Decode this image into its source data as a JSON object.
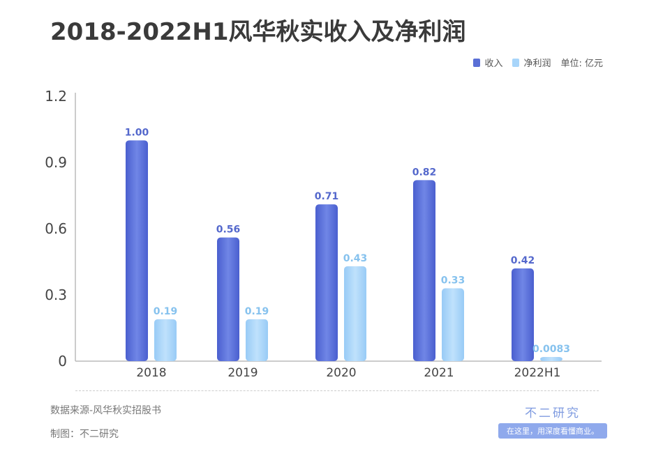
{
  "chart_data": {
    "type": "bar",
    "title": "2018-2022H1风华秋实收入及净利润",
    "categories": [
      "2018",
      "2019",
      "2020",
      "2021",
      "2022H1"
    ],
    "series": [
      {
        "name": "收入",
        "values": [
          1.0,
          0.56,
          0.71,
          0.82,
          0.42
        ],
        "labels": [
          "1.00",
          "0.56",
          "0.71",
          "0.82",
          "0.42"
        ],
        "color": "#5a6fd6",
        "label_color": "#5468cc"
      },
      {
        "name": "净利润",
        "values": [
          0.19,
          0.19,
          0.43,
          0.33,
          0.0083
        ],
        "labels": [
          "0.19",
          "0.19",
          "0.43",
          "0.33",
          "0.0083"
        ],
        "color": "#a8d5fa",
        "label_color": "#86c2ee"
      }
    ],
    "yticks": [
      "0",
      "0.3",
      "0.6",
      "0.9",
      "1.2"
    ],
    "ylim": [
      0,
      1.2
    ],
    "unit": "单位: 亿元",
    "legend_position": "top-right",
    "grid": false
  },
  "footer": {
    "source": "数据来源-风华秋实招股书",
    "maker": "制图：不二研究",
    "brand": "不二研究",
    "slogan": "在这里，用深度看懂商业。"
  }
}
